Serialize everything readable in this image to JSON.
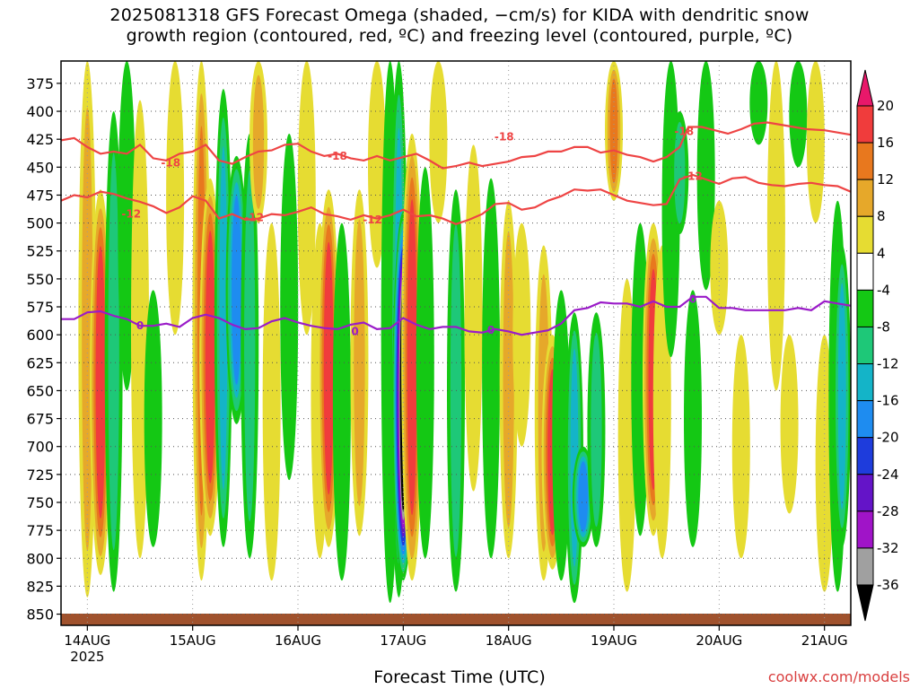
{
  "title_line1": "2025081318 GFS Forecast Omega (shaded, −cm/s) for KIDA with dendritic snow",
  "title_line2": "growth region (contoured, red, ºC) and freezing level (contoured, purple, ºC)",
  "credit": "coolwx.com/models",
  "chart_data": {
    "type": "heatmap",
    "xlabel": "Forecast Time (UTC)",
    "ylabel": "",
    "x_ticks": [
      "14AUG",
      "15AUG",
      "16AUG",
      "17AUG",
      "18AUG",
      "19AUG",
      "20AUG",
      "21AUG"
    ],
    "x_tick_sublabel": "2025",
    "x_range_hours": [
      -6,
      174
    ],
    "y_ticks": [
      375,
      400,
      425,
      450,
      475,
      500,
      525,
      550,
      575,
      600,
      625,
      650,
      675,
      700,
      725,
      750,
      775,
      800,
      825,
      850
    ],
    "y_range_hpa": [
      355,
      860
    ],
    "colorbar": {
      "ticks": [
        20,
        16,
        12,
        8,
        4,
        -4,
        -8,
        -12,
        -16,
        -20,
        -24,
        -28,
        -32,
        -36
      ],
      "levels": [
        {
          "range": "above 20",
          "color": "#e8186a"
        },
        {
          "range": "16 to 20",
          "color": "#f03c3c"
        },
        {
          "range": "12 to 16",
          "color": "#e8781e"
        },
        {
          "range": "8 to 12",
          "color": "#e6a82a"
        },
        {
          "range": "4 to 8",
          "color": "#e6dc32"
        },
        {
          "range": "-4 to 4",
          "color": "#ffffff"
        },
        {
          "range": "-8 to -4",
          "color": "#14c814"
        },
        {
          "range": "-12 to -8",
          "color": "#1ec878"
        },
        {
          "range": "-16 to -12",
          "color": "#14b4c8"
        },
        {
          "range": "-20 to -16",
          "color": "#1e8cf0"
        },
        {
          "range": "-24 to -20",
          "color": "#1e3cdc"
        },
        {
          "range": "-28 to -24",
          "color": "#6414c8"
        },
        {
          "range": "-32 to -28",
          "color": "#a014c8"
        },
        {
          "range": "-36 to -32",
          "color": "#a0a0a0"
        },
        {
          "range": "below -36",
          "color": "#000000"
        }
      ]
    },
    "omega_features": [
      {
        "t": 0,
        "p_top": 355,
        "p_bot": 835,
        "value": 12
      },
      {
        "t": 3,
        "p_top": 470,
        "p_bot": 815,
        "value": 20
      },
      {
        "t": 6,
        "p_top": 400,
        "p_bot": 830,
        "value": -12
      },
      {
        "t": 9,
        "p_top": 355,
        "p_bot": 650,
        "value": -6
      },
      {
        "t": 12,
        "p_top": 390,
        "p_bot": 800,
        "value": 6
      },
      {
        "t": 15,
        "p_top": 560,
        "p_bot": 790,
        "value": -8
      },
      {
        "t": 20,
        "p_top": 355,
        "p_bot": 600,
        "value": 8
      },
      {
        "t": 26,
        "p_top": 355,
        "p_bot": 820,
        "value": 14
      },
      {
        "t": 28,
        "p_top": 460,
        "p_bot": 780,
        "value": 20
      },
      {
        "t": 31,
        "p_top": 380,
        "p_bot": 790,
        "value": -16
      },
      {
        "t": 34,
        "p_top": 440,
        "p_bot": 680,
        "value": -20
      },
      {
        "t": 37,
        "p_top": 420,
        "p_bot": 800,
        "value": -10
      },
      {
        "t": 39,
        "p_top": 355,
        "p_bot": 500,
        "value": 10
      },
      {
        "t": 42,
        "p_top": 500,
        "p_bot": 820,
        "value": 6
      },
      {
        "t": 46,
        "p_top": 420,
        "p_bot": 730,
        "value": -6
      },
      {
        "t": 50,
        "p_top": 355,
        "p_bot": 600,
        "value": 6
      },
      {
        "t": 53,
        "p_top": 500,
        "p_bot": 800,
        "value": 8
      },
      {
        "t": 55,
        "p_top": 470,
        "p_bot": 790,
        "value": 20
      },
      {
        "t": 58,
        "p_top": 500,
        "p_bot": 820,
        "value": -8
      },
      {
        "t": 62,
        "p_top": 470,
        "p_bot": 780,
        "value": 10
      },
      {
        "t": 66,
        "p_top": 355,
        "p_bot": 540,
        "value": 8
      },
      {
        "t": 69,
        "p_top": 355,
        "p_bot": 840,
        "value": -6
      },
      {
        "t": 71,
        "p_top": 355,
        "p_bot": 835,
        "value": -14
      },
      {
        "t": 72,
        "p_top": 490,
        "p_bot": 820,
        "value": -40
      },
      {
        "t": 74,
        "p_top": 420,
        "p_bot": 820,
        "value": 20
      },
      {
        "t": 77,
        "p_top": 450,
        "p_bot": 800,
        "value": -8
      },
      {
        "t": 80,
        "p_top": 355,
        "p_bot": 500,
        "value": 6
      },
      {
        "t": 84,
        "p_top": 470,
        "p_bot": 830,
        "value": -10
      },
      {
        "t": 88,
        "p_top": 430,
        "p_bot": 740,
        "value": 8
      },
      {
        "t": 92,
        "p_top": 460,
        "p_bot": 800,
        "value": -6
      },
      {
        "t": 96,
        "p_top": 480,
        "p_bot": 800,
        "value": 10
      },
      {
        "t": 99,
        "p_top": 500,
        "p_bot": 700,
        "value": 6
      },
      {
        "t": 104,
        "p_top": 520,
        "p_bot": 820,
        "value": 10
      },
      {
        "t": 106,
        "p_top": 600,
        "p_bot": 810,
        "value": 20
      },
      {
        "t": 108,
        "p_top": 560,
        "p_bot": 820,
        "value": -8
      },
      {
        "t": 111,
        "p_top": 580,
        "p_bot": 840,
        "value": -14
      },
      {
        "t": 113,
        "p_top": 700,
        "p_bot": 790,
        "value": -20
      },
      {
        "t": 116,
        "p_top": 580,
        "p_bot": 790,
        "value": -10
      },
      {
        "t": 120,
        "p_top": 355,
        "p_bot": 480,
        "value": 14
      },
      {
        "t": 123,
        "p_top": 550,
        "p_bot": 830,
        "value": 6
      },
      {
        "t": 126,
        "p_top": 500,
        "p_bot": 780,
        "value": -6
      },
      {
        "t": 129,
        "p_top": 500,
        "p_bot": 780,
        "value": 20
      },
      {
        "t": 131,
        "p_top": 520,
        "p_bot": 800,
        "value": 8
      },
      {
        "t": 133,
        "p_top": 355,
        "p_bot": 620,
        "value": -6
      },
      {
        "t": 135,
        "p_top": 400,
        "p_bot": 510,
        "value": -12
      },
      {
        "t": 138,
        "p_top": 560,
        "p_bot": 790,
        "value": -8
      },
      {
        "t": 141,
        "p_top": 355,
        "p_bot": 560,
        "value": -6
      },
      {
        "t": 144,
        "p_top": 480,
        "p_bot": 600,
        "value": 6
      },
      {
        "t": 149,
        "p_top": 600,
        "p_bot": 800,
        "value": 6
      },
      {
        "t": 153,
        "p_top": 355,
        "p_bot": 430,
        "value": -6
      },
      {
        "t": 157,
        "p_top": 355,
        "p_bot": 650,
        "value": 6
      },
      {
        "t": 160,
        "p_top": 600,
        "p_bot": 760,
        "value": 6
      },
      {
        "t": 162,
        "p_top": 355,
        "p_bot": 450,
        "value": -6
      },
      {
        "t": 166,
        "p_top": 355,
        "p_bot": 500,
        "value": 6
      },
      {
        "t": 168,
        "p_top": 600,
        "p_bot": 830,
        "value": 6
      },
      {
        "t": 171,
        "p_top": 480,
        "p_bot": 830,
        "value": -8
      },
      {
        "t": 172,
        "p_top": 520,
        "p_bot": 790,
        "value": -14
      }
    ],
    "contours": [
      {
        "label": "-18",
        "color": "#ee4444",
        "points": [
          [
            -6,
            426
          ],
          [
            -3,
            424
          ],
          [
            0,
            432
          ],
          [
            3,
            438
          ],
          [
            6,
            436
          ],
          [
            9,
            438
          ],
          [
            12,
            430
          ],
          [
            15,
            442
          ],
          [
            18,
            444
          ],
          [
            21,
            438
          ],
          [
            24,
            436
          ],
          [
            27,
            430
          ],
          [
            30,
            444
          ],
          [
            33,
            447
          ],
          [
            36,
            441
          ],
          [
            39,
            436
          ],
          [
            42,
            435
          ],
          [
            45,
            430
          ],
          [
            48,
            429
          ],
          [
            51,
            436
          ],
          [
            54,
            440
          ],
          [
            57,
            438
          ],
          [
            60,
            442
          ],
          [
            63,
            444
          ],
          [
            66,
            440
          ],
          [
            69,
            444
          ],
          [
            72,
            441
          ],
          [
            75,
            438
          ],
          [
            78,
            444
          ],
          [
            81,
            451
          ],
          [
            84,
            449
          ],
          [
            87,
            446
          ],
          [
            90,
            449
          ],
          [
            93,
            447
          ],
          [
            96,
            445
          ],
          [
            99,
            441
          ],
          [
            102,
            440
          ],
          [
            105,
            436
          ],
          [
            108,
            436
          ],
          [
            111,
            432
          ],
          [
            114,
            432
          ],
          [
            117,
            437
          ],
          [
            120,
            435
          ],
          [
            123,
            439
          ],
          [
            126,
            441
          ],
          [
            129,
            445
          ],
          [
            132,
            441
          ],
          [
            135,
            432
          ],
          [
            137,
            414
          ],
          [
            140,
            414
          ],
          [
            143,
            417
          ],
          [
            146,
            420
          ],
          [
            149,
            416
          ],
          [
            152,
            411
          ],
          [
            155,
            410
          ],
          [
            158,
            412
          ],
          [
            161,
            414
          ],
          [
            164,
            416
          ],
          [
            168,
            417
          ],
          [
            171,
            419
          ],
          [
            174,
            421
          ]
        ],
        "label_positions": [
          [
            19,
            446
          ],
          [
            57,
            440
          ],
          [
            95,
            423
          ],
          [
            136,
            418
          ]
        ]
      },
      {
        "label": "-12",
        "color": "#ee4444",
        "points": [
          [
            -6,
            480
          ],
          [
            -3,
            475
          ],
          [
            0,
            477
          ],
          [
            3,
            472
          ],
          [
            6,
            474
          ],
          [
            9,
            478
          ],
          [
            12,
            481
          ],
          [
            15,
            485
          ],
          [
            18,
            491
          ],
          [
            21,
            486
          ],
          [
            24,
            476
          ],
          [
            27,
            480
          ],
          [
            30,
            496
          ],
          [
            33,
            492
          ],
          [
            36,
            497
          ],
          [
            39,
            496
          ],
          [
            42,
            492
          ],
          [
            45,
            493
          ],
          [
            48,
            490
          ],
          [
            51,
            486
          ],
          [
            54,
            492
          ],
          [
            57,
            494
          ],
          [
            60,
            497
          ],
          [
            63,
            493
          ],
          [
            66,
            496
          ],
          [
            69,
            493
          ],
          [
            72,
            488
          ],
          [
            75,
            494
          ],
          [
            78,
            493
          ],
          [
            81,
            496
          ],
          [
            84,
            501
          ],
          [
            87,
            497
          ],
          [
            90,
            492
          ],
          [
            93,
            483
          ],
          [
            96,
            482
          ],
          [
            99,
            488
          ],
          [
            102,
            486
          ],
          [
            105,
            480
          ],
          [
            108,
            476
          ],
          [
            111,
            470
          ],
          [
            114,
            471
          ],
          [
            117,
            470
          ],
          [
            120,
            475
          ],
          [
            123,
            480
          ],
          [
            126,
            482
          ],
          [
            129,
            484
          ],
          [
            132,
            483
          ],
          [
            135,
            461
          ],
          [
            138,
            457
          ],
          [
            141,
            461
          ],
          [
            144,
            465
          ],
          [
            147,
            460
          ],
          [
            150,
            459
          ],
          [
            153,
            464
          ],
          [
            156,
            466
          ],
          [
            159,
            467
          ],
          [
            162,
            465
          ],
          [
            165,
            464
          ],
          [
            168,
            466
          ],
          [
            171,
            467
          ],
          [
            174,
            472
          ]
        ],
        "label_positions": [
          [
            10,
            492
          ],
          [
            38,
            495
          ],
          [
            65,
            497
          ],
          [
            138,
            458
          ]
        ]
      },
      {
        "label": "0",
        "color": "#9a1bc8",
        "points": [
          [
            -6,
            586
          ],
          [
            -3,
            586
          ],
          [
            0,
            580
          ],
          [
            3,
            579
          ],
          [
            6,
            583
          ],
          [
            9,
            586
          ],
          [
            12,
            592
          ],
          [
            15,
            592
          ],
          [
            18,
            590
          ],
          [
            21,
            593
          ],
          [
            24,
            585
          ],
          [
            27,
            582
          ],
          [
            30,
            585
          ],
          [
            33,
            591
          ],
          [
            36,
            595
          ],
          [
            39,
            594
          ],
          [
            42,
            588
          ],
          [
            45,
            585
          ],
          [
            48,
            589
          ],
          [
            51,
            592
          ],
          [
            54,
            594
          ],
          [
            57,
            595
          ],
          [
            60,
            591
          ],
          [
            63,
            589
          ],
          [
            66,
            595
          ],
          [
            69,
            594
          ],
          [
            72,
            585
          ],
          [
            75,
            591
          ],
          [
            78,
            595
          ],
          [
            81,
            593
          ],
          [
            84,
            593
          ],
          [
            87,
            597
          ],
          [
            90,
            598
          ],
          [
            93,
            595
          ],
          [
            96,
            597
          ],
          [
            99,
            600
          ],
          [
            102,
            598
          ],
          [
            105,
            596
          ],
          [
            108,
            590
          ],
          [
            111,
            578
          ],
          [
            114,
            576
          ],
          [
            117,
            571
          ],
          [
            120,
            572
          ],
          [
            123,
            572
          ],
          [
            126,
            575
          ],
          [
            129,
            570
          ],
          [
            132,
            575
          ],
          [
            135,
            575
          ],
          [
            138,
            566
          ],
          [
            141,
            566
          ],
          [
            144,
            576
          ],
          [
            147,
            576
          ],
          [
            150,
            578
          ],
          [
            153,
            578
          ],
          [
            156,
            578
          ],
          [
            159,
            578
          ],
          [
            162,
            576
          ],
          [
            165,
            578
          ],
          [
            168,
            570
          ],
          [
            171,
            572
          ],
          [
            174,
            574
          ]
        ],
        "label_positions": [
          [
            12,
            592
          ],
          [
            61,
            597
          ],
          [
            92,
            596
          ],
          [
            138,
            568
          ]
        ]
      }
    ]
  }
}
